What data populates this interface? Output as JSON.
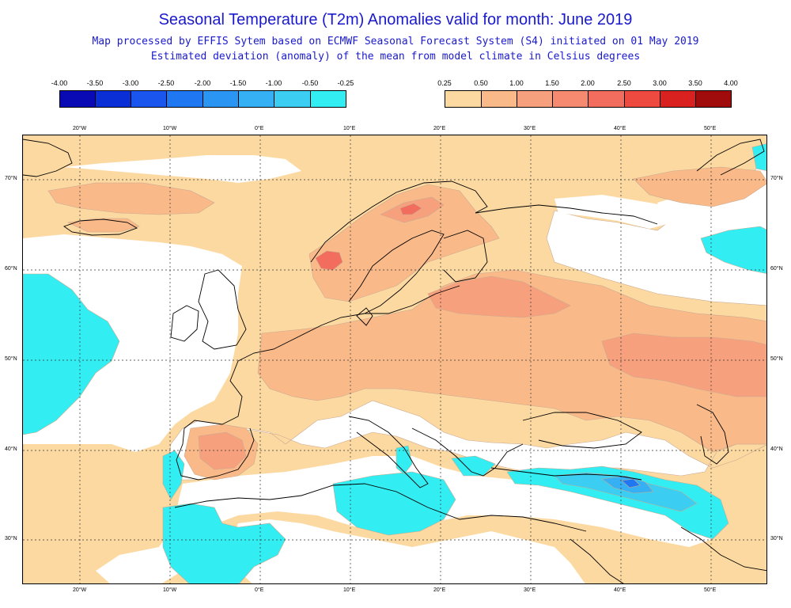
{
  "header": {
    "title": "Seasonal Temperature (T2m) Anomalies valid for month: June 2019",
    "subtitle_line1": "Map processed by EFFIS Sytem based on ECMWF Seasonal Forecast System (S4) initiated on 01 May 2019",
    "subtitle_line2": "Estimated deviation (anomaly) of the mean from model climate in Celsius degrees"
  },
  "legend": {
    "negative": {
      "labels": [
        "-4.00",
        "-3.50",
        "-3.00",
        "-2.50",
        "-2.00",
        "-1.50",
        "-1.00",
        "-0.50",
        "-0.25"
      ],
      "colors": [
        "#0a0ab4",
        "#0b2fd6",
        "#1a55ee",
        "#1f78f2",
        "#2a95f3",
        "#35b0f4",
        "#3ccdf2",
        "#32eef2"
      ]
    },
    "positive": {
      "labels": [
        "0.25",
        "0.50",
        "1.00",
        "1.50",
        "2.00",
        "2.50",
        "3.00",
        "3.50",
        "4.00"
      ],
      "colors": [
        "#fdd9a2",
        "#f9b989",
        "#f7a07e",
        "#f68a70",
        "#f26d5d",
        "#ee4a3f",
        "#d9221f",
        "#a00c0c"
      ]
    }
  },
  "axes": {
    "top_lon": [
      "20°W",
      "10°W",
      "0°E",
      "10°E",
      "20°E",
      "30°E",
      "40°E",
      "50°E"
    ],
    "bottom_lon": [
      "20°W",
      "10°W",
      "0°E",
      "10°E",
      "20°E",
      "30°E",
      "40°E",
      "50°E"
    ],
    "left_lat": [
      "70°N",
      "60°N",
      "50°N",
      "40°N",
      "30°N"
    ],
    "right_lat": [
      "70°N",
      "60°N",
      "50°N",
      "40°N",
      "30°N"
    ]
  },
  "map_colors": {
    "light_warm": "#fdd9a2",
    "warm": "#f9b989",
    "warmer": "#f7a07e",
    "hot": "#f26d5d",
    "cool": "#32eef2",
    "cooler": "#3ccdf2",
    "cold": "#35b0f4",
    "colder": "#1f78f2"
  }
}
